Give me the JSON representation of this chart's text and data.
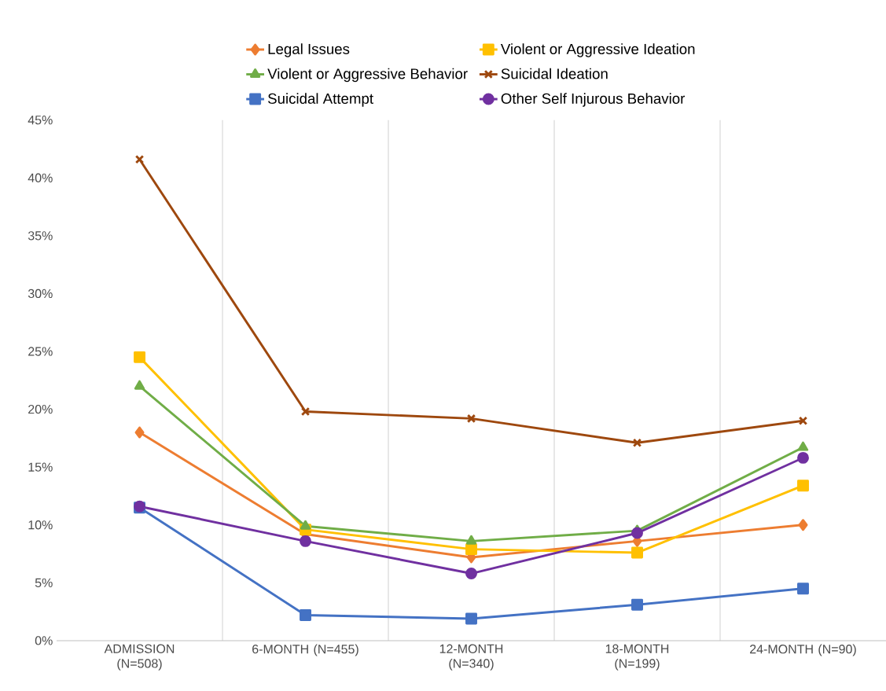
{
  "chart_data": {
    "type": "line",
    "categories": [
      "ADMISSION (N=508)",
      "6-MONTH (N=455)",
      "12-MONTH (N=340)",
      "18-MONTH (N=199)",
      "24-MONTH (N=90)"
    ],
    "series": [
      {
        "name": "Legal Issues",
        "color": "#ed7d31",
        "marker": "diamond",
        "values": [
          18.0,
          9.2,
          7.2,
          8.6,
          10.0
        ]
      },
      {
        "name": "Violent or Aggressive Ideation",
        "color": "#ffc000",
        "marker": "square",
        "values": [
          24.5,
          9.6,
          7.9,
          7.6,
          13.4
        ]
      },
      {
        "name": "Violent or Aggressive Behavior",
        "color": "#70ad47",
        "marker": "triangle",
        "values": [
          22.0,
          9.9,
          8.6,
          9.5,
          16.7
        ]
      },
      {
        "name": "Suicidal Ideation",
        "color": "#9e480e",
        "marker": "cross",
        "values": [
          41.6,
          19.8,
          19.2,
          17.1,
          19.0
        ]
      },
      {
        "name": "Suicidal Attempt",
        "color": "#4472c4",
        "marker": "square",
        "values": [
          11.5,
          2.2,
          1.9,
          3.1,
          4.5
        ]
      },
      {
        "name": "Other Self Injurous Behavior",
        "color": "#7030a0",
        "marker": "circle",
        "values": [
          11.6,
          8.6,
          5.8,
          9.3,
          15.8
        ]
      }
    ],
    "ylim": [
      0,
      45
    ],
    "yticks": [
      {
        "value": 0,
        "label": "0%"
      },
      {
        "value": 5,
        "label": "5%"
      },
      {
        "value": 10,
        "label": "10%"
      },
      {
        "value": 15,
        "label": "15%"
      },
      {
        "value": 20,
        "label": "20%"
      },
      {
        "value": 25,
        "label": "25%"
      },
      {
        "value": 30,
        "label": "30%"
      },
      {
        "value": 35,
        "label": "35%"
      },
      {
        "value": 40,
        "label": "40%"
      },
      {
        "value": 45,
        "label": "45%"
      }
    ],
    "grid": "x",
    "legend": "top",
    "line_style": "solid"
  }
}
